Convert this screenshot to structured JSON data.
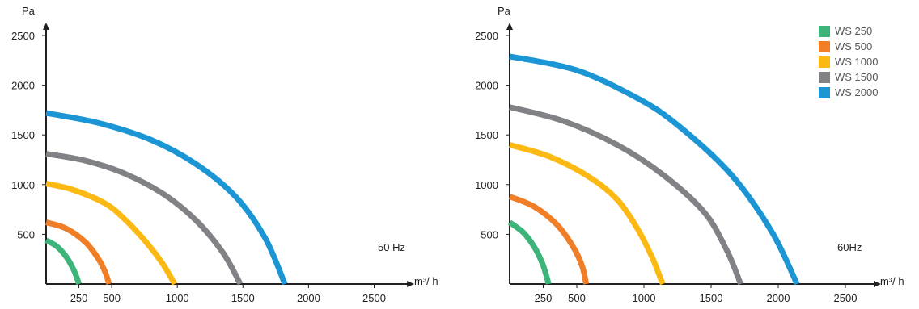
{
  "chart_data": [
    {
      "type": "line",
      "ylabel": "Pa",
      "xlabel": "m³/ h",
      "annotation": "50 Hz",
      "xlim": [
        0,
        2800
      ],
      "ylim": [
        0,
        2600
      ],
      "xticks": [
        250,
        500,
        1000,
        1500,
        2000,
        2500
      ],
      "yticks": [
        500,
        1000,
        1500,
        2000,
        2500
      ],
      "series": [
        {
          "name": "WS 250",
          "color": "#3db57a",
          "x": [
            0,
            80,
            150,
            200,
            230,
            250
          ],
          "y": [
            440,
            380,
            280,
            170,
            80,
            0
          ]
        },
        {
          "name": "WS 500",
          "color": "#f07e26",
          "x": [
            0,
            150,
            300,
            400,
            450,
            480
          ],
          "y": [
            620,
            560,
            420,
            250,
            120,
            0
          ]
        },
        {
          "name": "WS 1000",
          "color": "#fdb913",
          "x": [
            0,
            200,
            450,
            600,
            750,
            880,
            980
          ],
          "y": [
            1010,
            950,
            810,
            650,
            440,
            220,
            0
          ]
        },
        {
          "name": "WS 1500",
          "color": "#808285",
          "x": [
            0,
            300,
            600,
            900,
            1150,
            1350,
            1480
          ],
          "y": [
            1310,
            1240,
            1110,
            900,
            630,
            310,
            0
          ]
        },
        {
          "name": "WS 2000",
          "color": "#1b95d4",
          "x": [
            0,
            400,
            800,
            1150,
            1450,
            1670,
            1820
          ],
          "y": [
            1720,
            1620,
            1450,
            1200,
            870,
            460,
            0
          ]
        }
      ]
    },
    {
      "type": "line",
      "ylabel": "Pa",
      "xlabel": "m³/ h",
      "annotation": "60Hz",
      "xlim": [
        0,
        2800
      ],
      "ylim": [
        0,
        2600
      ],
      "xticks": [
        250,
        500,
        1000,
        1500,
        2000,
        2500
      ],
      "yticks": [
        500,
        1000,
        1500,
        2000,
        2500
      ],
      "series": [
        {
          "name": "WS 250",
          "color": "#3db57a",
          "x": [
            0,
            100,
            180,
            240,
            270,
            290
          ],
          "y": [
            620,
            520,
            380,
            220,
            100,
            0
          ]
        },
        {
          "name": "WS 500",
          "color": "#f07e26",
          "x": [
            0,
            180,
            350,
            470,
            540,
            570
          ],
          "y": [
            880,
            780,
            600,
            380,
            180,
            0
          ]
        },
        {
          "name": "WS 1000",
          "color": "#fdb913",
          "x": [
            0,
            300,
            600,
            800,
            950,
            1060,
            1140
          ],
          "y": [
            1400,
            1280,
            1070,
            850,
            560,
            270,
            0
          ]
        },
        {
          "name": "WS 1500",
          "color": "#808285",
          "x": [
            0,
            400,
            800,
            1150,
            1450,
            1620,
            1720
          ],
          "y": [
            1780,
            1640,
            1400,
            1090,
            720,
            330,
            0
          ]
        },
        {
          "name": "WS 2000",
          "color": "#1b95d4",
          "x": [
            0,
            500,
            950,
            1250,
            1650,
            1950,
            2140
          ],
          "y": [
            2290,
            2150,
            1870,
            1600,
            1100,
            530,
            0
          ]
        }
      ]
    }
  ],
  "legend": [
    {
      "label": "WS 250",
      "color": "#3db57a"
    },
    {
      "label": "WS 500",
      "color": "#f07e26"
    },
    {
      "label": "WS 1000",
      "color": "#fdb913"
    },
    {
      "label": "WS 1500",
      "color": "#808285"
    },
    {
      "label": "WS 2000",
      "color": "#1b95d4"
    }
  ]
}
